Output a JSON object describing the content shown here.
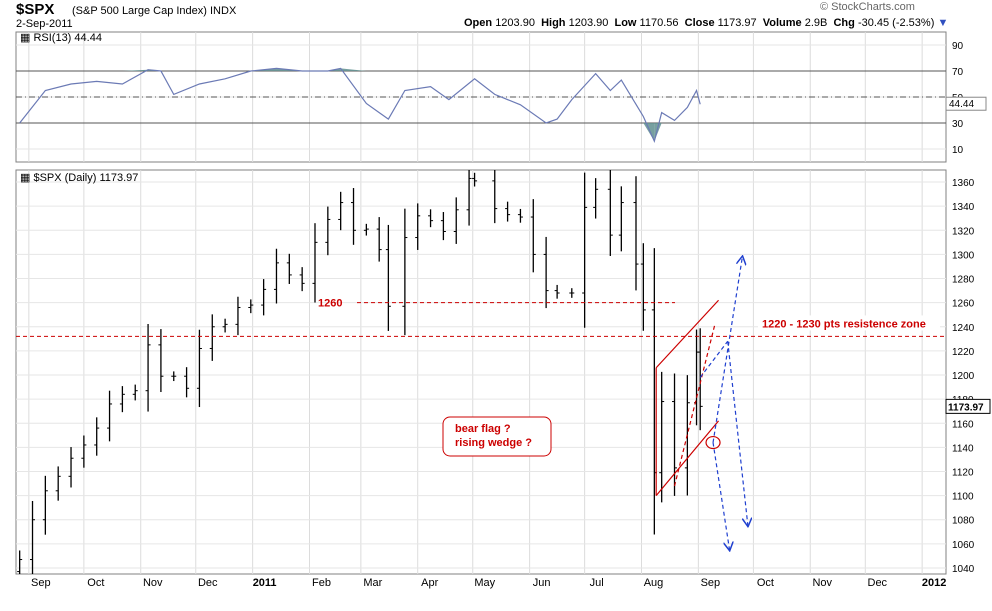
{
  "header": {
    "symbol": "$SPX",
    "name": "(S&P 500 Large Cap Index) INDX",
    "date": "2-Sep-2011",
    "open_label": "Open",
    "open": "1203.90",
    "high_label": "High",
    "high": "1203.90",
    "low_label": "Low",
    "low": "1170.56",
    "close_label": "Close",
    "close": "1173.97",
    "volume_label": "Volume",
    "volume": "2.9B",
    "chg_label": "Chg",
    "chg": "-30.45 (-2.53%)",
    "brand": "© StockCharts.com"
  },
  "colors": {
    "price": "#000000",
    "rsi_line": "#6b7ab5",
    "rsi_fill": "#5f8f8f",
    "annotation_red": "#cc0000",
    "projection_blue": "#1f3fcf"
  },
  "chart_data": [
    {
      "type": "line",
      "title": "RSI(13) 44.44",
      "ylim": [
        0,
        100
      ],
      "y_ticks": [
        10,
        30,
        50,
        70,
        90
      ],
      "reference_lines": [
        30,
        50,
        70
      ],
      "last_value_label": "44.44",
      "x": [
        "2010-08-27",
        "2010-09-10",
        "2010-09-24",
        "2010-10-08",
        "2010-10-22",
        "2010-11-05",
        "2010-11-12",
        "2010-11-19",
        "2010-12-03",
        "2010-12-17",
        "2010-12-31",
        "2011-01-14",
        "2011-01-28",
        "2011-02-11",
        "2011-02-18",
        "2011-03-04",
        "2011-03-16",
        "2011-03-25",
        "2011-04-08",
        "2011-04-18",
        "2011-05-02",
        "2011-05-13",
        "2011-05-27",
        "2011-06-10",
        "2011-06-16",
        "2011-06-24",
        "2011-07-07",
        "2011-07-15",
        "2011-07-21",
        "2011-08-02",
        "2011-08-08",
        "2011-08-12",
        "2011-08-19",
        "2011-08-26",
        "2011-08-31",
        "2011-09-02"
      ],
      "series": [
        {
          "values": [
            30,
            55,
            60,
            62,
            60,
            71,
            70,
            52,
            60,
            64,
            70,
            72,
            70,
            70,
            72,
            45,
            33,
            55,
            58,
            48,
            64,
            52,
            44,
            30,
            33,
            48,
            68,
            55,
            63,
            35,
            16,
            38,
            32,
            42,
            55,
            44.44
          ]
        }
      ]
    },
    {
      "type": "bar",
      "title": "$SPX (Daily) 1173.97",
      "ylim": [
        1035,
        1370
      ],
      "y_ticks": [
        1040,
        1060,
        1080,
        1100,
        1120,
        1140,
        1160,
        1180,
        1200,
        1220,
        1240,
        1260,
        1280,
        1300,
        1320,
        1340,
        1360
      ],
      "last_price_label": "1173.97",
      "x_ticks": [
        "Sep",
        "Oct",
        "Nov",
        "Dec",
        "2011",
        "Feb",
        "Mar",
        "Apr",
        "May",
        "Jun",
        "Jul",
        "Aug",
        "Sep",
        "Oct",
        "Nov",
        "Dec",
        "2012"
      ],
      "x_tick_dates": [
        "2010-09-01",
        "2010-10-01",
        "2010-11-01",
        "2010-12-01",
        "2011-01-01",
        "2011-02-01",
        "2011-03-01",
        "2011-04-01",
        "2011-05-01",
        "2011-06-01",
        "2011-07-01",
        "2011-08-01",
        "2011-09-01",
        "2011-10-01",
        "2011-11-01",
        "2011-12-01",
        "2012-01-01"
      ],
      "x": [
        "2010-08-27",
        "2010-09-03",
        "2010-09-10",
        "2010-09-17",
        "2010-09-24",
        "2010-10-01",
        "2010-10-08",
        "2010-10-15",
        "2010-10-22",
        "2010-10-29",
        "2010-11-05",
        "2010-11-12",
        "2010-11-19",
        "2010-11-26",
        "2010-12-03",
        "2010-12-10",
        "2010-12-17",
        "2010-12-24",
        "2010-12-31",
        "2011-01-07",
        "2011-01-14",
        "2011-01-21",
        "2011-01-28",
        "2011-02-04",
        "2011-02-11",
        "2011-02-18",
        "2011-02-25",
        "2011-03-04",
        "2011-03-11",
        "2011-03-16",
        "2011-03-25",
        "2011-04-01",
        "2011-04-08",
        "2011-04-15",
        "2011-04-22",
        "2011-04-29",
        "2011-05-02",
        "2011-05-13",
        "2011-05-20",
        "2011-05-27",
        "2011-06-03",
        "2011-06-10",
        "2011-06-16",
        "2011-06-24",
        "2011-07-01",
        "2011-07-07",
        "2011-07-15",
        "2011-07-21",
        "2011-07-29",
        "2011-08-02",
        "2011-08-08",
        "2011-08-12",
        "2011-08-19",
        "2011-08-26",
        "2011-08-31",
        "2011-09-02"
      ],
      "series": [
        {
          "name": "Close",
          "values": [
            1047,
            1080,
            1104,
            1116,
            1131,
            1142,
            1156,
            1176,
            1184,
            1187,
            1225,
            1199,
            1199,
            1189,
            1222,
            1240,
            1242,
            1256,
            1258,
            1271,
            1293,
            1283,
            1276,
            1310,
            1329,
            1343,
            1320,
            1321,
            1304,
            1257,
            1314,
            1332,
            1328,
            1319,
            1337,
            1363,
            1361,
            1338,
            1333,
            1331,
            1300,
            1270,
            1268,
            1268,
            1339,
            1354,
            1316,
            1343,
            1292,
            1254,
            1119,
            1178,
            1123,
            1177,
            1219,
            1174
          ]
        }
      ],
      "annotations": [
        {
          "type": "hline",
          "y": 1260,
          "label": "1260"
        },
        {
          "type": "hline",
          "y": 1232,
          "label": "1220 - 1230  pts resistence zone"
        },
        {
          "type": "note",
          "lines": [
            "bear flag ?",
            "rising wedge ?"
          ]
        }
      ],
      "trendlines": [
        {
          "from": [
            "2011-08-09",
            1100
          ],
          "to": [
            "2011-09-12",
            1162
          ]
        },
        {
          "from": [
            "2011-08-09",
            1206
          ],
          "to": [
            "2011-09-12",
            1262
          ]
        },
        {
          "from": [
            "2011-08-19",
            1108
          ],
          "to": [
            "2011-09-10",
            1242
          ]
        }
      ],
      "projections": [
        {
          "from": [
            "2011-09-09",
            1144
          ],
          "to": [
            "2011-09-25",
            1298
          ]
        },
        {
          "from": [
            "2011-09-09",
            1144
          ],
          "to": [
            "2011-09-18",
            1055
          ]
        },
        {
          "from": [
            "2011-09-02",
            1198
          ],
          "to": [
            "2011-09-17",
            1228
          ]
        },
        {
          "from": [
            "2011-09-17",
            1228
          ],
          "to": [
            "2011-09-28",
            1075
          ]
        }
      ]
    }
  ]
}
